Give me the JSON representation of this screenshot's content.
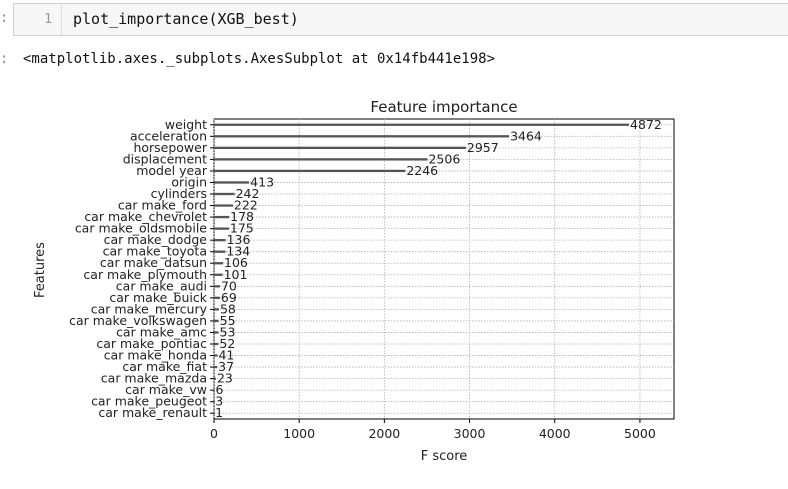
{
  "notebook": {
    "input_prompt": ":",
    "line_number": "1",
    "code": "plot_importance(XGB_best)",
    "output_prompt": ":",
    "output_text": "<matplotlib.axes._subplots.AxesSubplot at 0x14fb441e198>"
  },
  "chart_data": {
    "type": "bar",
    "orientation": "horizontal",
    "title": "Feature importance",
    "xlabel": "F score",
    "ylabel": "Features",
    "xlim": [
      0,
      5400
    ],
    "xticks": [
      0,
      1000,
      2000,
      3000,
      4000,
      5000
    ],
    "grid": true,
    "bar_color": "#1f77b4",
    "categories": [
      "weight",
      "acceleration",
      "horsepower",
      "displacement",
      "model year",
      "origin",
      "cylinders",
      "car make_ford",
      "car make_chevrolet",
      "car make_oldsmobile",
      "car make_dodge",
      "car make_toyota",
      "car make_datsun",
      "car make_plymouth",
      "car make_audi",
      "car make_buick",
      "car make_mercury",
      "car make_volkswagen",
      "car make_amc",
      "car make_pontiac",
      "car make_honda",
      "car make_fiat",
      "car make_mazda",
      "car make_vw",
      "car make_peugeot",
      "car make_renault"
    ],
    "values": [
      4872,
      3464,
      2957,
      2506,
      2246,
      413,
      242,
      222,
      178,
      175,
      136,
      134,
      106,
      101,
      70,
      69,
      58,
      55,
      53,
      52,
      41,
      37,
      23,
      6,
      3,
      1
    ]
  }
}
